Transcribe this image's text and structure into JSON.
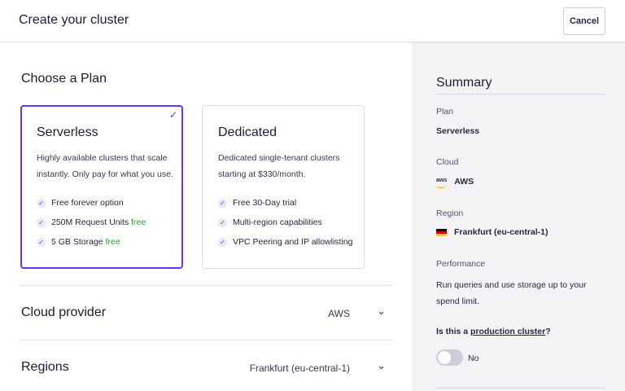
{
  "header": {
    "title": "Create your cluster",
    "cancel_label": "Cancel"
  },
  "plan_section": {
    "title": "Choose a Plan",
    "cards": [
      {
        "name": "Serverless",
        "selected": true,
        "description": "Highly available clusters that scale instantly. Only pay for what you use.",
        "features": [
          {
            "text": "Free forever option",
            "tag": ""
          },
          {
            "text": "250M Request Units",
            "tag": "free"
          },
          {
            "text": "5 GB Storage",
            "tag": "free"
          }
        ]
      },
      {
        "name": "Dedicated",
        "selected": false,
        "description": "Dedicated single-tenant clusters starting at $330/month.",
        "features": [
          {
            "text": "Free 30-Day trial",
            "tag": ""
          },
          {
            "text": "Multi-region capabilities",
            "tag": ""
          },
          {
            "text": "VPC Peering and IP allowlisting",
            "tag": ""
          }
        ]
      }
    ]
  },
  "accordions": [
    {
      "title": "Cloud provider",
      "value": "AWS"
    },
    {
      "title": "Regions",
      "value": "Frankfurt (eu-central-1)"
    }
  ],
  "summary": {
    "title": "Summary",
    "plan_label": "Plan",
    "plan_value": "Serverless",
    "cloud_label": "Cloud",
    "cloud_logo_text": "aws",
    "cloud_value": "AWS",
    "region_label": "Region",
    "region_value": "Frankfurt (eu-central-1)",
    "performance_label": "Performance",
    "performance_text": "Run queries and use storage up to your spend limit.",
    "production_question_prefix": "Is this a ",
    "production_question_link": "production cluster",
    "production_question_suffix": "?",
    "toggle_label": "No",
    "toggle_on": false
  },
  "colors": {
    "accent": "#6933ff",
    "free_tag": "#2e9b2e",
    "summary_bg": "#f4f4f7"
  },
  "icons": {
    "selected_check": "check-icon",
    "feature_tick": "check-circle-icon",
    "accordion": "chevron-down-icon"
  }
}
